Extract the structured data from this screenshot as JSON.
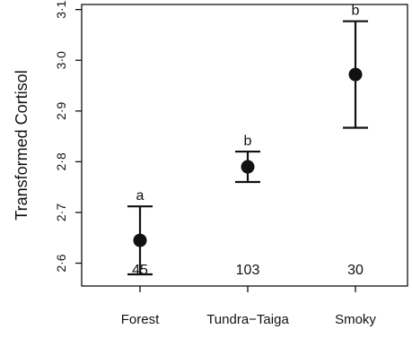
{
  "chart_data": {
    "type": "scatter",
    "title": "",
    "xlabel": "",
    "ylabel": "Transformed Cortisol",
    "ylim": [
      2.555,
      3.11
    ],
    "yticks": [
      "2·6",
      "2·7",
      "2·8",
      "2·9",
      "3·0",
      "3·1"
    ],
    "ytick_values": [
      2.6,
      2.7,
      2.8,
      2.9,
      3.0,
      3.1
    ],
    "grid": false,
    "categories": [
      "Forest",
      "Tundra−Taiga",
      "Smoky"
    ],
    "points": [
      {
        "category": "Forest",
        "mean": 2.645,
        "lower": 2.578,
        "upper": 2.712,
        "letter": "a",
        "n": "45"
      },
      {
        "category": "Tundra−Taiga",
        "mean": 2.79,
        "lower": 2.76,
        "upper": 2.82,
        "letter": "b",
        "n": "103"
      },
      {
        "category": "Smoky",
        "mean": 2.972,
        "lower": 2.867,
        "upper": 3.077,
        "letter": "b",
        "n": "30"
      }
    ],
    "colors": {
      "marker": "#111111",
      "axis": "#111111"
    }
  }
}
